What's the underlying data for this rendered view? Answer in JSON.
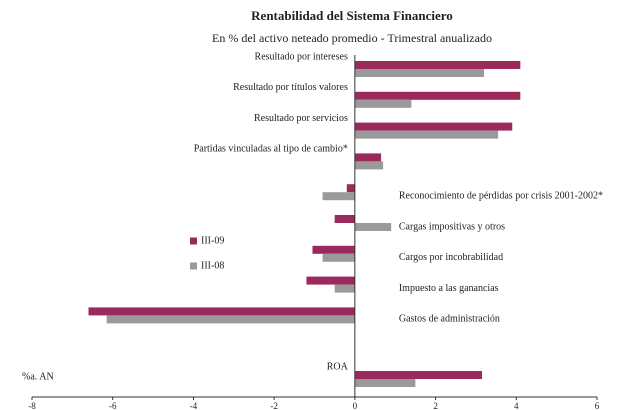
{
  "chart_data": {
    "type": "barh",
    "title": "Rentabilidad del Sistema Financiero",
    "subtitle": "En % del activo neteado promedio - Trimestral anualizado",
    "y_label": "%a. AN",
    "categories": [
      "Resultado por intereses",
      "Resultado por títulos valores",
      "Resultado por servicios",
      "Partidas vinculadas al tipo de cambio*",
      "Reconocimiento de pérdidas por crisis 2001-2002*",
      "Cargas impositivas  y otros",
      "Cargos por incobrabilidad",
      "Impuesto a las ganancias",
      "Gastos de administración",
      "ROA"
    ],
    "series": [
      {
        "name": "III-09",
        "color": "#9b2a5c",
        "values": [
          4.1,
          4.1,
          3.9,
          0.65,
          -0.2,
          -0.5,
          -1.05,
          -1.2,
          -6.6,
          3.15
        ]
      },
      {
        "name": "III-08",
        "color": "#9a9a9a",
        "values": [
          3.2,
          1.4,
          3.55,
          0.7,
          -0.8,
          0.9,
          -0.8,
          -0.5,
          -6.15,
          1.5
        ]
      }
    ],
    "xlim": [
      -8,
      6
    ],
    "xticks": [
      -8,
      -6,
      -4,
      -2,
      0,
      2,
      4,
      6
    ]
  }
}
